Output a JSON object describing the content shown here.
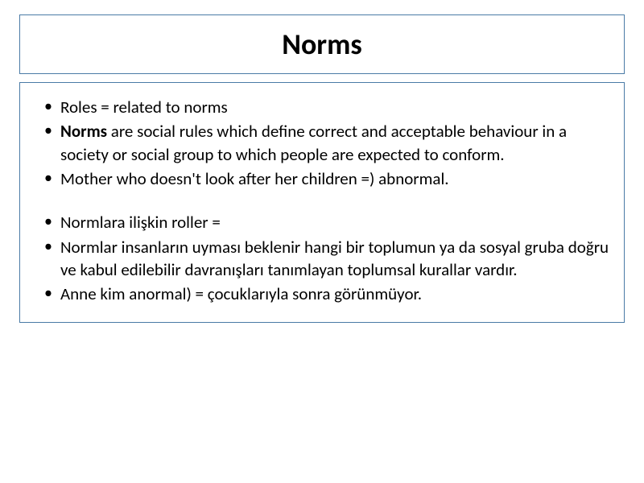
{
  "slide": {
    "title": "Norms",
    "title_fontsize": 36,
    "title_fontweight": "bold",
    "border_color": "#4a7ba6",
    "background_color": "#ffffff",
    "text_color": "#000000",
    "body_fontsize": 21,
    "bullets": [
      {
        "prefix": "",
        "bold": "",
        "text": "Roles = related to norms",
        "gap_before": false
      },
      {
        "prefix": "",
        "bold": "Norms",
        "text": " are social rules which define correct and acceptable behaviour in a society or social group to which people are expected to conform.",
        "gap_before": false
      },
      {
        "prefix": "",
        "bold": "",
        "text": "Mother who doesn't look after her children =) abnormal.",
        "gap_before": false
      },
      {
        "prefix": "",
        "bold": "",
        "text": "Normlara ilişkin roller =",
        "gap_before": true
      },
      {
        "prefix": "",
        "bold": "",
        "text": "Normlar insanların uyması beklenir hangi bir toplumun ya da sosyal gruba doğru ve kabul edilebilir davranışları tanımlayan toplumsal kurallar vardır.",
        "gap_before": false
      },
      {
        "prefix": "",
        "bold": "",
        "text": "Anne kim anormal) = çocuklarıyla sonra görünmüyor.",
        "gap_before": false
      }
    ]
  }
}
